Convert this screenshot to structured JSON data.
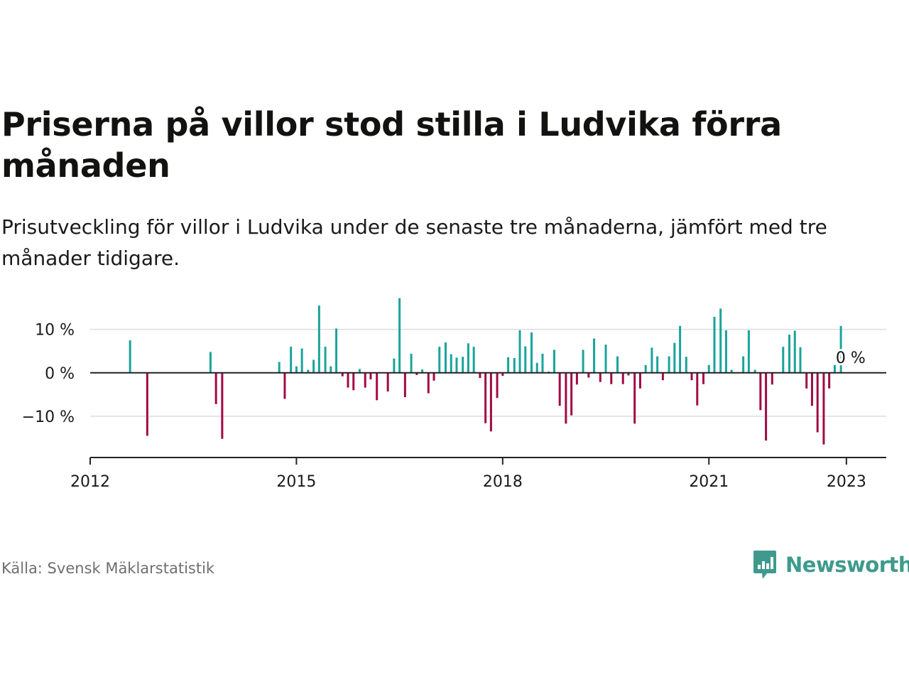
{
  "title": "Priserna på villor stod stilla i Ludvika förra månaden",
  "subtitle": "Prisutveckling för villor i Ludvika under de senaste tre månaderna, jämfört med tre månader tidigare.",
  "source": "Källa: Svensk Mäklarstatistik",
  "brand": "Newsworthy",
  "colors": {
    "positive": "#1aa39a",
    "negative": "#a10a44",
    "brand": "#3e9a8c",
    "grid": "#dddddd",
    "axis": "#222222"
  },
  "chart_data": {
    "type": "bar",
    "ylim": [
      -19.5,
      16
    ],
    "yticks": [
      10,
      0,
      -10
    ],
    "ytick_labels": [
      "10 %",
      "0 %",
      "−10 %"
    ],
    "xticks": [
      2012,
      2015,
      2018,
      2021,
      2023
    ],
    "xtick_labels": [
      "2012",
      "2015",
      "2018",
      "2021",
      "2023"
    ],
    "xlim": [
      2012.0,
      2023.58
    ],
    "grid": true,
    "annotation": "0 %",
    "x": [
      2012.58,
      2012.83,
      2013.75,
      2013.83,
      2013.92,
      2014.75,
      2014.83,
      2014.92,
      2015.0,
      2015.08,
      2015.17,
      2015.25,
      2015.33,
      2015.42,
      2015.5,
      2015.58,
      2015.67,
      2015.75,
      2015.83,
      2015.92,
      2016.0,
      2016.08,
      2016.17,
      2016.33,
      2016.42,
      2016.5,
      2016.58,
      2016.67,
      2016.75,
      2016.83,
      2016.92,
      2017.0,
      2017.08,
      2017.17,
      2017.25,
      2017.33,
      2017.42,
      2017.5,
      2017.58,
      2017.67,
      2017.75,
      2017.83,
      2017.92,
      2018.0,
      2018.08,
      2018.17,
      2018.25,
      2018.33,
      2018.42,
      2018.5,
      2018.58,
      2018.67,
      2018.75,
      2018.83,
      2018.92,
      2019.0,
      2019.08,
      2019.17,
      2019.25,
      2019.33,
      2019.42,
      2019.5,
      2019.58,
      2019.67,
      2019.75,
      2019.83,
      2019.92,
      2020.0,
      2020.08,
      2020.17,
      2020.25,
      2020.33,
      2020.42,
      2020.5,
      2020.58,
      2020.67,
      2020.75,
      2020.83,
      2020.92,
      2021.0,
      2021.08,
      2021.17,
      2021.25,
      2021.33,
      2021.5,
      2021.58,
      2021.67,
      2021.75,
      2021.83,
      2021.92,
      2022.08,
      2022.17,
      2022.25,
      2022.33,
      2022.42,
      2022.5,
      2022.58,
      2022.67,
      2022.75,
      2022.83,
      2022.92,
      2023.0
    ],
    "values": [
      7.5,
      -14.5,
      4.8,
      -7.2,
      -15.2,
      2.5,
      -6.0,
      6.0,
      1.5,
      5.6,
      0.7,
      3.0,
      15.5,
      6.0,
      1.5,
      10.2,
      -0.8,
      -3.4,
      -4.0,
      0.9,
      -3.4,
      -1.5,
      -6.3,
      -4.3,
      3.3,
      17.2,
      -5.6,
      4.4,
      -0.5,
      0.8,
      -4.7,
      -1.8,
      6.0,
      7.0,
      4.3,
      3.5,
      3.7,
      6.8,
      6.0,
      -1.2,
      -11.6,
      -13.5,
      -5.8,
      -0.7,
      3.6,
      3.4,
      9.8,
      6.1,
      9.3,
      2.3,
      4.4,
      0.3,
      5.3,
      -7.6,
      -11.7,
      -9.8,
      -2.7,
      5.3,
      -1.1,
      7.9,
      -2.1,
      6.5,
      -2.6,
      3.8,
      -2.6,
      -0.6,
      -11.7,
      -3.6,
      1.8,
      5.8,
      3.8,
      -1.7,
      3.8,
      6.9,
      10.8,
      3.7,
      -1.7,
      -7.5,
      -2.6,
      1.8,
      12.9,
      14.8,
      9.8,
      0.7,
      3.8,
      9.8,
      0.7,
      -8.6,
      -15.6,
      -2.7,
      6.0,
      8.8,
      9.7,
      5.9,
      -3.6,
      -7.6,
      -13.7,
      -16.5,
      -3.6,
      1.8,
      10.8,
      0.0
    ]
  }
}
